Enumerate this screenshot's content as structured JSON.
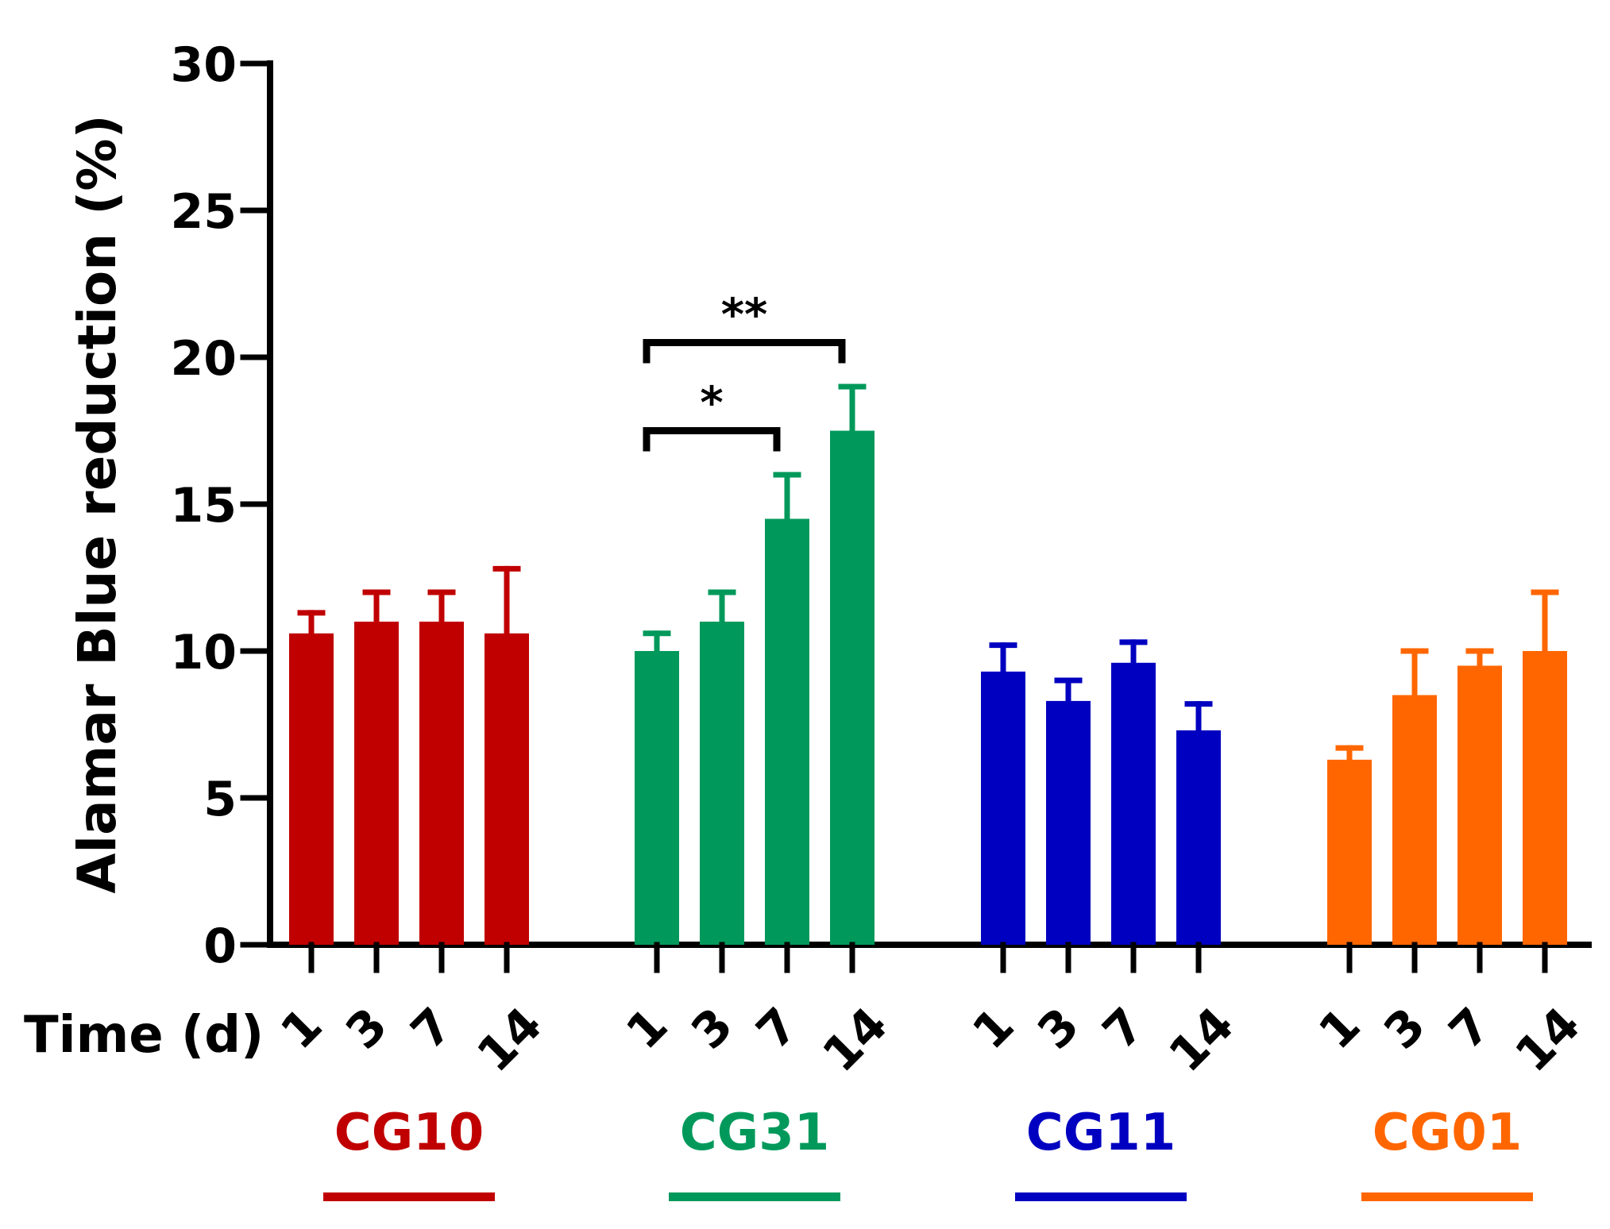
{
  "chart_data": {
    "type": "bar",
    "ylabel": "Alamar Blue reduction (%)",
    "ylim": [
      0,
      30
    ],
    "yticks": [
      0,
      5,
      10,
      15,
      20,
      25,
      30
    ],
    "time_label": "Time (d)",
    "time_points": [
      "1",
      "3",
      "7",
      "14"
    ],
    "groups": [
      {
        "name": "CG10",
        "color": "#C00000",
        "values": [
          10.6,
          11.0,
          11.0,
          10.6
        ],
        "errors": [
          0.7,
          1.0,
          1.0,
          2.2
        ]
      },
      {
        "name": "CG31",
        "color": "#00995B",
        "values": [
          10.0,
          11.0,
          14.5,
          17.5
        ],
        "errors": [
          0.6,
          1.0,
          1.5,
          1.5
        ]
      },
      {
        "name": "CG11",
        "color": "#0000C0",
        "values": [
          9.3,
          8.3,
          9.6,
          7.3
        ],
        "errors": [
          0.9,
          0.7,
          0.7,
          0.9
        ]
      },
      {
        "name": "CG01",
        "color": "#FF6600",
        "values": [
          6.3,
          8.5,
          9.5,
          10.0
        ],
        "errors": [
          0.4,
          1.5,
          0.5,
          2.0
        ]
      }
    ],
    "significance": [
      {
        "group": "CG31",
        "from": "1",
        "to": "7",
        "y": 17.5,
        "label": "*"
      },
      {
        "group": "CG31",
        "from": "1",
        "to": "14",
        "y": 20.5,
        "label": "**"
      }
    ]
  }
}
